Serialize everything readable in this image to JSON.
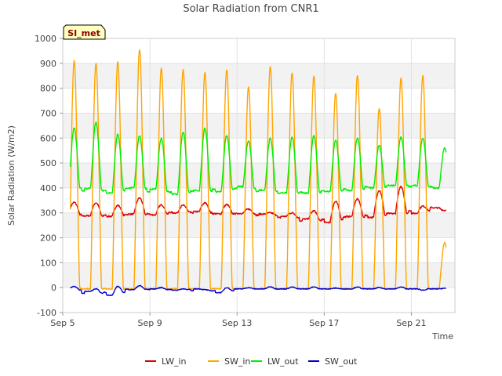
{
  "chart_data": {
    "type": "line",
    "title": "Solar Radiation from CNR1",
    "site_label": "SI_met",
    "xlabel": "Time",
    "ylabel": "Solar Radiation (W/m2)",
    "ylim": [
      -100,
      1000
    ],
    "y_ticks": [
      -100,
      0,
      100,
      200,
      300,
      400,
      500,
      600,
      700,
      800,
      900,
      1000
    ],
    "x_ticks": [
      {
        "label": "Sep 5",
        "day": 5
      },
      {
        "label": "Sep 9",
        "day": 9
      },
      {
        "label": "Sep 13",
        "day": 13
      },
      {
        "label": "Sep 17",
        "day": 17
      },
      {
        "label": "Sep 21",
        "day": 21
      }
    ],
    "xlim_days": [
      5,
      23
    ],
    "x_start_day": 5.35,
    "x_end_day": 22.6,
    "grid": true,
    "background_bands": true,
    "legend_position": "bottom",
    "series": [
      {
        "name": "LW_in",
        "color": "#dd0000",
        "night": [
          298,
          288,
          286,
          295,
          292,
          300,
          305,
          296,
          298,
          295,
          286,
          275,
          262,
          285,
          282,
          297,
          298,
          320,
          323,
          300,
          305,
          290,
          295
        ],
        "day": [
          342,
          340,
          330,
          360,
          332,
          330,
          340,
          333,
          315,
          300,
          300,
          308,
          345,
          355,
          390,
          404,
          327,
          310
        ]
      },
      {
        "name": "SW_in",
        "color": "#ffa500",
        "night": [
          -5,
          -5,
          -5,
          -5,
          -5,
          -5,
          -5,
          -5,
          -5,
          -5,
          -5,
          -5,
          -5,
          -5,
          -5,
          -5,
          -5,
          -5,
          -5,
          -5,
          -5,
          -5,
          -5
        ],
        "day": [
          910,
          900,
          905,
          955,
          880,
          875,
          865,
          875,
          805,
          888,
          862,
          850,
          780,
          852,
          720,
          840,
          850,
          180
        ]
      },
      {
        "name": "LW_out",
        "color": "#00ee00",
        "night": [
          405,
          398,
          380,
          400,
          395,
          375,
          390,
          385,
          405,
          392,
          380,
          380,
          385,
          390,
          400,
          410,
          410,
          400,
          410,
          390,
          395,
          380,
          390
        ],
        "day": [
          640,
          665,
          615,
          610,
          600,
          625,
          640,
          610,
          590,
          600,
          605,
          610,
          590,
          600,
          570,
          605,
          600,
          560
        ]
      },
      {
        "name": "SW_out",
        "color": "#0000cc",
        "night": [
          -5,
          -15,
          -30,
          -8,
          -5,
          -10,
          -5,
          -20,
          -5,
          -5,
          -5,
          -5,
          -5,
          -5,
          -5,
          -5,
          -5,
          -5,
          -5,
          -5,
          -5,
          -15,
          -5
        ],
        "day": [
          5,
          -5,
          5,
          8,
          0,
          -5,
          -8,
          0,
          0,
          3,
          2,
          3,
          -2,
          2,
          0,
          2,
          -10,
          -3
        ]
      }
    ]
  }
}
